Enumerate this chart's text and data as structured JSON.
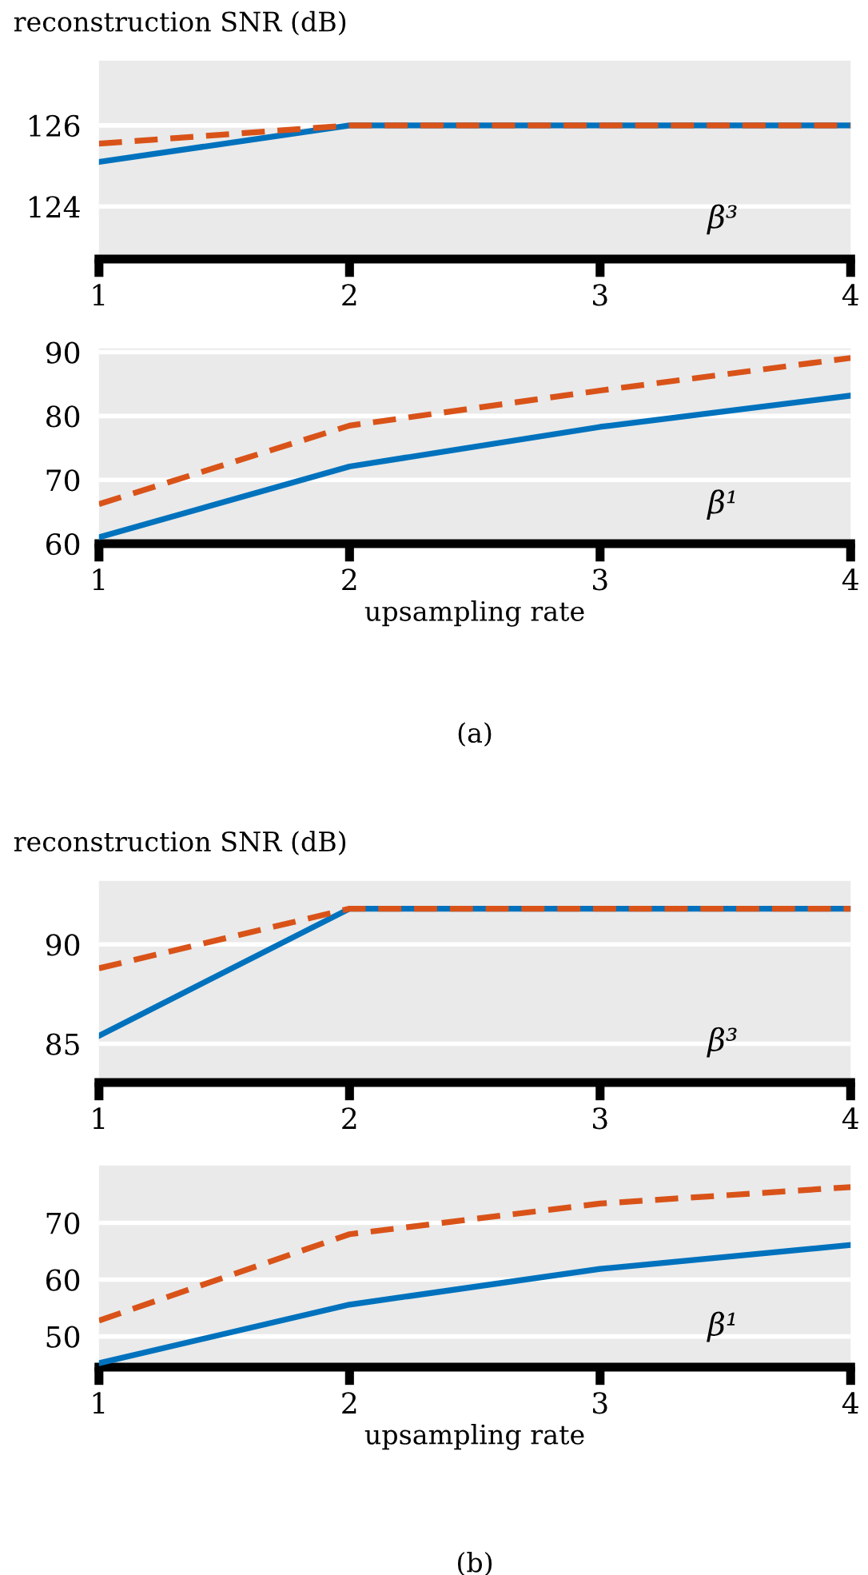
{
  "chart_data": [
    {
      "type": "line",
      "ylabel": "reconstruction SNR (dB)",
      "x": [
        1,
        2,
        3,
        4
      ],
      "xlim": [
        1,
        4
      ],
      "xticks": [
        1,
        2,
        3,
        4
      ],
      "ylim": [
        122.7,
        127.6
      ],
      "yticks": [
        124,
        126
      ],
      "grid": "y",
      "annotations": [
        "β³"
      ],
      "series": [
        {
          "color": "#0072bd",
          "line_style": "solid",
          "values": [
            125.1,
            126.0,
            126.0,
            126.0
          ]
        },
        {
          "color": "#d95319",
          "line_style": "dashed",
          "values": [
            125.55,
            126.0,
            126.0,
            126.0
          ]
        }
      ]
    },
    {
      "type": "line",
      "xlabel": "upsampling rate",
      "x": [
        1,
        2,
        3,
        4
      ],
      "xlim": [
        1,
        4
      ],
      "xticks": [
        1,
        2,
        3,
        4
      ],
      "ylim": [
        60,
        90.6
      ],
      "yticks": [
        60,
        70,
        80,
        90
      ],
      "grid": "y",
      "annotations": [
        "β¹",
        "(a)"
      ],
      "series": [
        {
          "color": "#0072bd",
          "line_style": "solid",
          "values": [
            61,
            72.1,
            78.3,
            83.2
          ]
        },
        {
          "color": "#d95319",
          "line_style": "dashed",
          "values": [
            66.2,
            78.5,
            84,
            89.1
          ]
        }
      ]
    },
    {
      "type": "line",
      "ylabel": "reconstruction SNR (dB)",
      "x": [
        1,
        2,
        3,
        4
      ],
      "xlim": [
        1,
        4
      ],
      "xticks": [
        1,
        2,
        3,
        4
      ],
      "ylim": [
        83.05,
        93.2
      ],
      "yticks": [
        85,
        90
      ],
      "grid": "y",
      "annotations": [
        "β³"
      ],
      "series": [
        {
          "color": "#0072bd",
          "line_style": "solid",
          "values": [
            85.4,
            91.8,
            91.8,
            91.8
          ]
        },
        {
          "color": "#d95319",
          "line_style": "dashed",
          "values": [
            88.8,
            91.8,
            91.8,
            91.8
          ]
        }
      ]
    },
    {
      "type": "line",
      "xlabel": "upsampling rate",
      "x": [
        1,
        2,
        3,
        4
      ],
      "xlim": [
        1,
        4
      ],
      "xticks": [
        1,
        2,
        3,
        4
      ],
      "ylim": [
        44.6,
        80.1
      ],
      "yticks": [
        50,
        60,
        70
      ],
      "grid": "y",
      "annotations": [
        "β¹",
        "(b)"
      ],
      "series": [
        {
          "color": "#0072bd",
          "line_style": "solid",
          "values": [
            45.3,
            55.6,
            61.9,
            66.1
          ]
        },
        {
          "color": "#d95319",
          "line_style": "dashed",
          "values": [
            52.8,
            68,
            73.4,
            76.3
          ]
        }
      ]
    }
  ]
}
